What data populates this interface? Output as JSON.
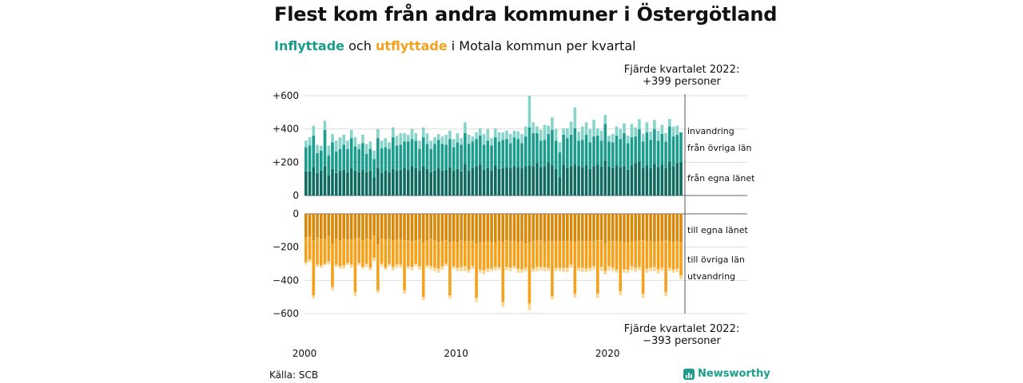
{
  "title": "Flest kom från andra kommuner i Östergötland",
  "subtitle": {
    "inflow_word": "Inflyttade",
    "joiner": " och ",
    "outflow_word": "utflyttade",
    "rest": " i Motala kommun per kvartal"
  },
  "annotation_top": {
    "line1": "Fjärde kvartalet 2022:",
    "line2": "+399 personer"
  },
  "annotation_bottom": {
    "line1": "Fjärde kvartalet 2022:",
    "line2": "−393 personer"
  },
  "source": "Källa: SCB",
  "brand": "Newsworthy",
  "colors": {
    "in_local": "#0e6b5f",
    "in_other": "#1a9d8d",
    "in_foreign": "#87d4cb",
    "out_local": "#d8890b",
    "out_other": "#f5a11b",
    "out_foreign": "#fbd595"
  },
  "chart_data": {
    "type": "bar",
    "stacked": true,
    "x_ticks": [
      "2000",
      "2010",
      "2020"
    ],
    "top_panel": {
      "ylim": [
        0,
        600
      ],
      "y_ticks": [
        "+600",
        "+400",
        "+200",
        "0"
      ],
      "series": [
        {
          "name": "från egna länet",
          "values": [
            145,
            145,
            170,
            135,
            150,
            175,
            120,
            160,
            135,
            150,
            155,
            140,
            165,
            150,
            140,
            155,
            140,
            150,
            110,
            165,
            135,
            150,
            140,
            160,
            150,
            155,
            165,
            155,
            175,
            165,
            150,
            175,
            160,
            140,
            150,
            165,
            150,
            155,
            170,
            150,
            160,
            145,
            190,
            150,
            165,
            175,
            185,
            155,
            165,
            150,
            180,
            160,
            165,
            170,
            165,
            175,
            170,
            165,
            175,
            180,
            175,
            195,
            170,
            175,
            200,
            180,
            160,
            110,
            185,
            165,
            175,
            185,
            175,
            170,
            180,
            160,
            175,
            185,
            175,
            210,
            175,
            165,
            180,
            170,
            175,
            155,
            180,
            195,
            205,
            165,
            180,
            165,
            190,
            170,
            185,
            165,
            205,
            175,
            195,
            200
          ]
        },
        {
          "name": "från övriga län",
          "values": [
            145,
            155,
            190,
            120,
            120,
            220,
            120,
            160,
            130,
            130,
            150,
            140,
            180,
            145,
            140,
            160,
            110,
            130,
            110,
            180,
            150,
            140,
            140,
            190,
            150,
            150,
            160,
            170,
            165,
            165,
            130,
            175,
            150,
            140,
            160,
            170,
            160,
            150,
            170,
            140,
            160,
            160,
            185,
            160,
            160,
            165,
            175,
            150,
            165,
            150,
            170,
            165,
            170,
            170,
            150,
            175,
            170,
            150,
            180,
            230,
            200,
            180,
            160,
            160,
            170,
            215,
            170,
            150,
            180,
            180,
            190,
            220,
            155,
            165,
            185,
            160,
            180,
            175,
            155,
            220,
            150,
            155,
            180,
            170,
            200,
            160,
            170,
            160,
            195,
            160,
            200,
            170,
            210,
            160,
            185,
            160,
            210,
            180,
            170,
            180
          ]
        },
        {
          "name": "invandring",
          "values": [
            40,
            50,
            60,
            50,
            30,
            55,
            60,
            50,
            65,
            70,
            60,
            50,
            50,
            55,
            30,
            50,
            60,
            45,
            50,
            55,
            45,
            55,
            40,
            60,
            60,
            70,
            50,
            40,
            60,
            45,
            50,
            60,
            65,
            50,
            40,
            35,
            45,
            60,
            50,
            50,
            55,
            40,
            65,
            55,
            30,
            40,
            45,
            65,
            70,
            45,
            55,
            55,
            45,
            50,
            55,
            40,
            45,
            55,
            60,
            190,
            65,
            40,
            65,
            90,
            50,
            75,
            70,
            60,
            40,
            60,
            80,
            125,
            55,
            80,
            75,
            80,
            100,
            45,
            60,
            55,
            35,
            50,
            55,
            60,
            60,
            45,
            80,
            55,
            60,
            45,
            60,
            50,
            55,
            60,
            55,
            50,
            45,
            60,
            55,
            0
          ]
        }
      ]
    },
    "bottom_panel": {
      "ylim": [
        -600,
        0
      ],
      "y_ticks": [
        "0",
        "−200",
        "−400",
        "−600"
      ],
      "series": [
        {
          "name": "till egna länet",
          "values": [
            -140,
            -135,
            -160,
            -140,
            -150,
            -150,
            -135,
            -180,
            -150,
            -160,
            -150,
            -155,
            -155,
            -150,
            -145,
            -160,
            -150,
            -155,
            -130,
            -180,
            -150,
            -155,
            -150,
            -160,
            -155,
            -155,
            -160,
            -160,
            -165,
            -160,
            -155,
            -170,
            -160,
            -150,
            -160,
            -170,
            -165,
            -160,
            -170,
            -165,
            -170,
            -160,
            -165,
            -165,
            -165,
            -175,
            -170,
            -170,
            -165,
            -170,
            -170,
            -165,
            -170,
            -160,
            -165,
            -165,
            -170,
            -165,
            -175,
            -170,
            -165,
            -160,
            -160,
            -170,
            -165,
            -165,
            -165,
            -165,
            -165,
            -165,
            -165,
            -170,
            -165,
            -165,
            -165,
            -165,
            -165,
            -160,
            -160,
            -175,
            -165,
            -165,
            -165,
            -165,
            -170,
            -170,
            -165,
            -165,
            -160,
            -160,
            -165,
            -165,
            -170,
            -165,
            -165,
            -160,
            -165,
            -170,
            -165,
            -170
          ]
        },
        {
          "name": "till övriga län",
          "values": [
            -150,
            -140,
            -330,
            -165,
            -160,
            -150,
            -150,
            -260,
            -155,
            -155,
            -160,
            -140,
            -150,
            -320,
            -150,
            -160,
            -150,
            -170,
            -135,
            -280,
            -150,
            -170,
            -150,
            -160,
            -150,
            -150,
            -300,
            -155,
            -155,
            -140,
            -160,
            -330,
            -150,
            -165,
            -165,
            -160,
            -150,
            -140,
            -320,
            -150,
            -155,
            -160,
            -150,
            -170,
            -150,
            -330,
            -165,
            -170,
            -165,
            -160,
            -150,
            -155,
            -360,
            -160,
            -160,
            -150,
            -160,
            -170,
            -150,
            -370,
            -165,
            -160,
            -160,
            -150,
            -160,
            -330,
            -160,
            -160,
            -160,
            -160,
            -140,
            -310,
            -160,
            -160,
            -165,
            -160,
            -150,
            -320,
            -160,
            -170,
            -150,
            -160,
            -170,
            -300,
            -165,
            -165,
            -150,
            -160,
            -160,
            -320,
            -165,
            -160,
            -150,
            -170,
            -160,
            -310,
            -160,
            -165,
            -165,
            -200
          ]
        },
        {
          "name": "utvandring",
          "values": [
            -15,
            -15,
            -20,
            -15,
            -15,
            -10,
            -20,
            -20,
            -15,
            -15,
            -20,
            -15,
            -20,
            -25,
            -15,
            -10,
            -20,
            -15,
            -20,
            -15,
            -15,
            -10,
            -15,
            -20,
            -20,
            -20,
            -20,
            -15,
            -20,
            -15,
            -20,
            -20,
            -15,
            -20,
            -20,
            -25,
            -20,
            -15,
            -20,
            -15,
            -20,
            -25,
            -30,
            -20,
            -15,
            -25,
            -20,
            -25,
            -20,
            -15,
            -20,
            -15,
            -30,
            -20,
            -20,
            -15,
            -25,
            -20,
            -20,
            -40,
            -20,
            -25,
            -20,
            -25,
            -20,
            -20,
            -20,
            -20,
            -25,
            -25,
            -20,
            -25,
            -20,
            -25,
            -20,
            -20,
            -20,
            -25,
            -25,
            -20,
            -25,
            -20,
            -20,
            -25,
            -20,
            -20,
            -25,
            -25,
            -20,
            -25,
            -25,
            -20,
            -25,
            -25,
            -20,
            -25,
            -20,
            -20,
            -20,
            -25
          ]
        }
      ]
    }
  }
}
